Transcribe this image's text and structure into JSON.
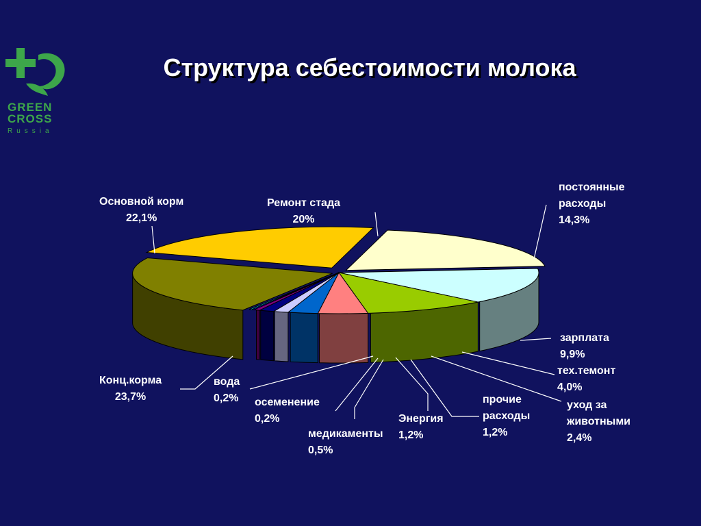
{
  "title": "Структура себестоимости молока",
  "logo": {
    "line1": "GREEN",
    "line2": "CROSS",
    "line3": "Russia",
    "color": "#3da64a"
  },
  "background": "#10125e",
  "chart_data": {
    "type": "pie",
    "title": "Структура себестоимости молока",
    "slices": [
      {
        "name": "Ремонт  стада",
        "value_label": "20%",
        "value": 20.0,
        "color": "#ffffcc"
      },
      {
        "name": "постоянные расходы",
        "value_label": "14,3%",
        "value": 14.3,
        "color": "#ccffff"
      },
      {
        "name": "зарплата",
        "value_label": "9,9%",
        "value": 9.9,
        "color": "#99cc00"
      },
      {
        "name": "тех.темонт",
        "value_label": "4,0%",
        "value": 4.0,
        "color": "#ff8080"
      },
      {
        "name": "уход за животными",
        "value_label": "2,4%",
        "value": 2.4,
        "color": "#0066cc"
      },
      {
        "name": "прочие расходы",
        "value_label": "1,2%",
        "value": 1.2,
        "color": "#ccccff"
      },
      {
        "name": "Энергия",
        "value_label": "1,2%",
        "value": 1.2,
        "color": "#000080"
      },
      {
        "name": "медикаменты",
        "value_label": "0,5%",
        "value": 0.5,
        "color": "#800080"
      },
      {
        "name": "осеменение",
        "value_label": "0,2%",
        "value": 0.2,
        "color": "#0000ff"
      },
      {
        "name": "вода",
        "value_label": "0,2%",
        "value": 0.2,
        "color": "#00ffff"
      },
      {
        "name": "Конц.корма",
        "value_label": "23,7%",
        "value": 23.7,
        "color": "#808000"
      },
      {
        "name": "Основной корм",
        "value_label": "22,1%",
        "value": 22.1,
        "color": "#ffcc00"
      }
    ]
  }
}
